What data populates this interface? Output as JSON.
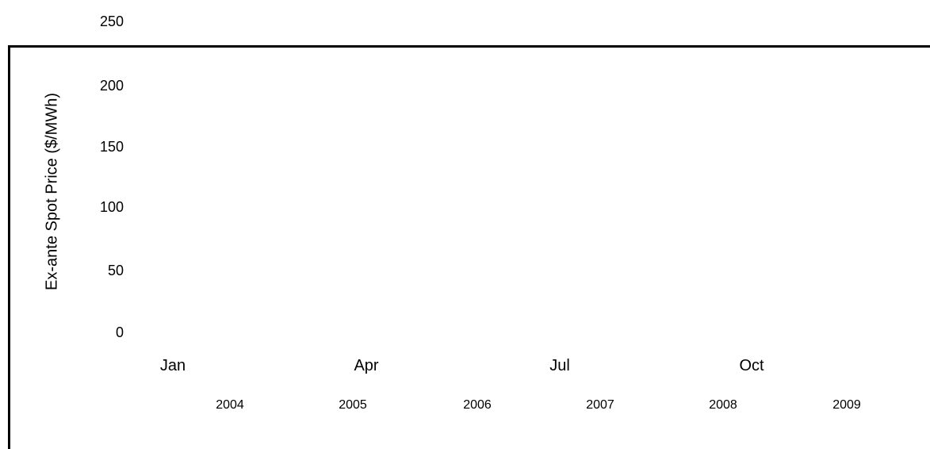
{
  "chart_data": {
    "type": "line",
    "title": "",
    "ylabel": "Ex-ante Spot Price ($/MWh)",
    "xlabel": "",
    "ylim": [
      0,
      250
    ],
    "yticks": [
      "0",
      "50",
      "100",
      "150",
      "200",
      "250"
    ],
    "month_ticks": [
      "Jan",
      "Apr",
      "Jul",
      "Oct"
    ],
    "year_ticks": [
      "2004",
      "2005",
      "2006",
      "2007",
      "2008",
      "2009"
    ],
    "series": [],
    "grid": false
  }
}
